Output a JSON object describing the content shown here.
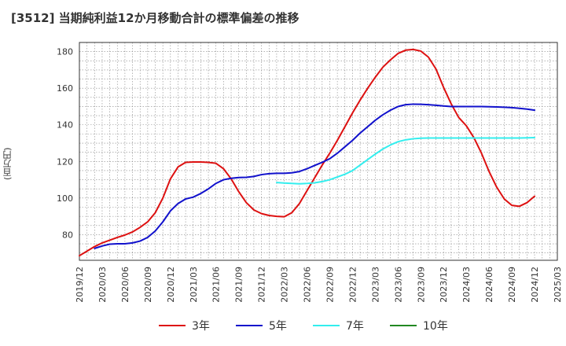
{
  "chart_data": {
    "type": "line",
    "title": "[3512]  当期純利益12か月移動合計の標準偏差の推移",
    "ylabel": "(百万円)",
    "xlabel": "",
    "ylim": [
      66,
      185
    ],
    "yticks": [
      80,
      100,
      120,
      140,
      160,
      180
    ],
    "x_ticks": [
      "2019/12",
      "2020/03",
      "2020/06",
      "2020/09",
      "2020/12",
      "2021/03",
      "2021/06",
      "2021/09",
      "2021/12",
      "2022/03",
      "2022/06",
      "2022/09",
      "2022/12",
      "2023/03",
      "2023/06",
      "2023/09",
      "2023/12",
      "2024/03",
      "2024/06",
      "2024/09",
      "2024/12",
      "2025/03"
    ],
    "grid": true,
    "legend_position": "bottom",
    "series": [
      {
        "name": "3年",
        "color": "#dd1111",
        "points": [
          [
            "2019-12",
            68.5
          ],
          [
            "2020-01",
            71
          ],
          [
            "2020-02",
            73.5
          ],
          [
            "2020-03",
            75.5
          ],
          [
            "2020-04",
            77
          ],
          [
            "2020-05",
            78.5
          ],
          [
            "2020-06",
            79.8
          ],
          [
            "2020-07",
            81.5
          ],
          [
            "2020-08",
            84
          ],
          [
            "2020-09",
            87
          ],
          [
            "2020-10",
            92
          ],
          [
            "2020-11",
            100
          ],
          [
            "2020-12",
            110.5
          ],
          [
            "2021-01",
            117
          ],
          [
            "2021-02",
            119.5
          ],
          [
            "2021-03",
            119.7
          ],
          [
            "2021-04",
            119.7
          ],
          [
            "2021-05",
            119.5
          ],
          [
            "2021-06",
            119
          ],
          [
            "2021-07",
            116
          ],
          [
            "2021-08",
            110.5
          ],
          [
            "2021-09",
            103.5
          ],
          [
            "2021-10",
            97.5
          ],
          [
            "2021-11",
            93.5
          ],
          [
            "2021-12",
            91.5
          ],
          [
            "2022-01",
            90.5
          ],
          [
            "2022-02",
            90
          ],
          [
            "2022-03",
            89.8
          ],
          [
            "2022-04",
            92
          ],
          [
            "2022-05",
            97
          ],
          [
            "2022-06",
            104
          ],
          [
            "2022-07",
            111
          ],
          [
            "2022-08",
            118
          ],
          [
            "2022-09",
            124.5
          ],
          [
            "2022-10",
            131.5
          ],
          [
            "2022-11",
            139
          ],
          [
            "2022-12",
            146.5
          ],
          [
            "2023-01",
            153.5
          ],
          [
            "2023-02",
            160
          ],
          [
            "2023-03",
            166
          ],
          [
            "2023-04",
            171.5
          ],
          [
            "2023-05",
            175.5
          ],
          [
            "2023-06",
            179
          ],
          [
            "2023-07",
            180.8
          ],
          [
            "2023-08",
            181.2
          ],
          [
            "2023-09",
            180.3
          ],
          [
            "2023-10",
            177
          ],
          [
            "2023-11",
            170.5
          ],
          [
            "2023-12",
            160.5
          ],
          [
            "2024-01",
            151.5
          ],
          [
            "2024-02",
            144
          ],
          [
            "2024-03",
            139.5
          ],
          [
            "2024-04",
            133
          ],
          [
            "2024-05",
            124.5
          ],
          [
            "2024-06",
            114.5
          ],
          [
            "2024-07",
            106
          ],
          [
            "2024-08",
            99.5
          ],
          [
            "2024-09",
            96
          ],
          [
            "2024-10",
            95.5
          ],
          [
            "2024-11",
            97.5
          ],
          [
            "2024-12",
            101
          ]
        ]
      },
      {
        "name": "5年",
        "color": "#1111cc",
        "points": [
          [
            "2020-02",
            72.5
          ],
          [
            "2020-03",
            73.8
          ],
          [
            "2020-04",
            74.8
          ],
          [
            "2020-05",
            75
          ],
          [
            "2020-06",
            75
          ],
          [
            "2020-07",
            75.5
          ],
          [
            "2020-08",
            76.5
          ],
          [
            "2020-09",
            78.5
          ],
          [
            "2020-10",
            82
          ],
          [
            "2020-11",
            87
          ],
          [
            "2020-12",
            93
          ],
          [
            "2021-01",
            97
          ],
          [
            "2021-02",
            99.5
          ],
          [
            "2021-03",
            100.5
          ],
          [
            "2021-04",
            102.5
          ],
          [
            "2021-05",
            105
          ],
          [
            "2021-06",
            108
          ],
          [
            "2021-07",
            110
          ],
          [
            "2021-08",
            110.8
          ],
          [
            "2021-09",
            111.2
          ],
          [
            "2021-10",
            111.3
          ],
          [
            "2021-11",
            111.8
          ],
          [
            "2021-12",
            112.8
          ],
          [
            "2022-01",
            113.3
          ],
          [
            "2022-02",
            113.5
          ],
          [
            "2022-03",
            113.5
          ],
          [
            "2022-04",
            113.8
          ],
          [
            "2022-05",
            114.5
          ],
          [
            "2022-06",
            116
          ],
          [
            "2022-07",
            117.8
          ],
          [
            "2022-08",
            119.5
          ],
          [
            "2022-09",
            121.5
          ],
          [
            "2022-10",
            124.5
          ],
          [
            "2022-11",
            128
          ],
          [
            "2022-12",
            131.5
          ],
          [
            "2023-01",
            135.5
          ],
          [
            "2023-02",
            139
          ],
          [
            "2023-03",
            142.5
          ],
          [
            "2023-04",
            145.5
          ],
          [
            "2023-05",
            148
          ],
          [
            "2023-06",
            150
          ],
          [
            "2023-07",
            151
          ],
          [
            "2023-08",
            151.3
          ],
          [
            "2023-09",
            151.2
          ],
          [
            "2023-10",
            151
          ],
          [
            "2023-11",
            150.7
          ],
          [
            "2023-12",
            150.3
          ],
          [
            "2024-01",
            150
          ],
          [
            "2024-02",
            150
          ],
          [
            "2024-03",
            150
          ],
          [
            "2024-04",
            150
          ],
          [
            "2024-05",
            150
          ],
          [
            "2024-06",
            149.9
          ],
          [
            "2024-07",
            149.8
          ],
          [
            "2024-08",
            149.6
          ],
          [
            "2024-09",
            149.4
          ],
          [
            "2024-10",
            149
          ],
          [
            "2024-11",
            148.6
          ],
          [
            "2024-12",
            148
          ]
        ]
      },
      {
        "name": "7年",
        "color": "#33eeee",
        "points": [
          [
            "2022-02",
            108.5
          ],
          [
            "2022-03",
            108.2
          ],
          [
            "2022-04",
            108
          ],
          [
            "2022-05",
            107.8
          ],
          [
            "2022-06",
            108
          ],
          [
            "2022-07",
            108.3
          ],
          [
            "2022-08",
            109
          ],
          [
            "2022-09",
            110
          ],
          [
            "2022-10",
            111.5
          ],
          [
            "2022-11",
            113
          ],
          [
            "2022-12",
            115
          ],
          [
            "2023-01",
            118
          ],
          [
            "2023-02",
            121
          ],
          [
            "2023-03",
            124
          ],
          [
            "2023-04",
            126.8
          ],
          [
            "2023-05",
            129
          ],
          [
            "2023-06",
            130.8
          ],
          [
            "2023-07",
            131.8
          ],
          [
            "2023-08",
            132.4
          ],
          [
            "2023-09",
            132.7
          ],
          [
            "2023-10",
            132.8
          ],
          [
            "2023-11",
            132.8
          ],
          [
            "2023-12",
            132.8
          ],
          [
            "2024-01",
            132.8
          ],
          [
            "2024-02",
            132.8
          ],
          [
            "2024-03",
            132.8
          ],
          [
            "2024-04",
            132.8
          ],
          [
            "2024-05",
            132.8
          ],
          [
            "2024-06",
            132.8
          ],
          [
            "2024-07",
            132.8
          ],
          [
            "2024-08",
            132.8
          ],
          [
            "2024-09",
            132.8
          ],
          [
            "2024-10",
            132.8
          ],
          [
            "2024-11",
            132.9
          ],
          [
            "2024-12",
            133
          ]
        ]
      },
      {
        "name": "10年",
        "color": "#228822",
        "points": []
      }
    ]
  }
}
